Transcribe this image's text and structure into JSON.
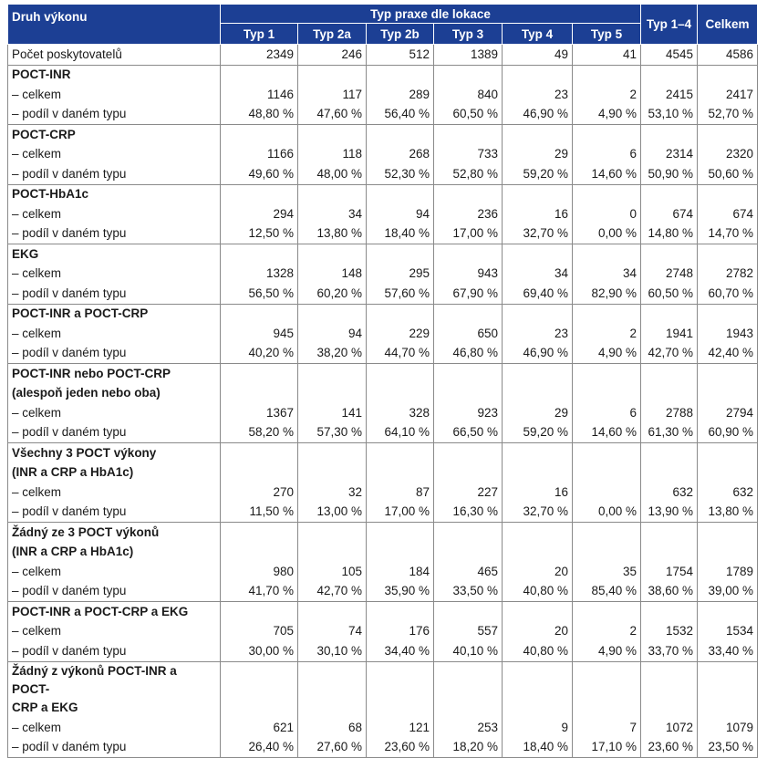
{
  "header": {
    "col0": "Druh výkonu",
    "group": "Typ praxe dle lokace",
    "types": [
      "Typ 1",
      "Typ 2a",
      "Typ 2b",
      "Typ 3",
      "Typ 4",
      "Typ 5"
    ],
    "type14": "Typ 1–4",
    "total": "Celkem"
  },
  "providers": {
    "label": "Počet poskytovatelů",
    "values": [
      "2349",
      "246",
      "512",
      "1389",
      "49",
      "41",
      "4545",
      "4586"
    ]
  },
  "sections": [
    {
      "title": [
        "POCT-INR"
      ],
      "total_label": "– celkem",
      "share_label": "– podíl v daném typu",
      "total": [
        "1146",
        "117",
        "289",
        "840",
        "23",
        "2",
        "2415",
        "2417"
      ],
      "share": [
        "48,80 %",
        "47,60 %",
        "56,40 %",
        "60,50 %",
        "46,90 %",
        "4,90 %",
        "53,10 %",
        "52,70 %"
      ]
    },
    {
      "title": [
        "POCT-CRP"
      ],
      "total_label": "– celkem",
      "share_label": "– podíl v daném typu",
      "total": [
        "1166",
        "118",
        "268",
        "733",
        "29",
        "6",
        "2314",
        "2320"
      ],
      "share": [
        "49,60 %",
        "48,00 %",
        "52,30 %",
        "52,80 %",
        "59,20 %",
        "14,60 %",
        "50,90 %",
        "50,60 %"
      ]
    },
    {
      "title": [
        "POCT-HbA1c"
      ],
      "total_label": "– celkem",
      "share_label": "– podíl v daném typu",
      "total": [
        "294",
        "34",
        "94",
        "236",
        "16",
        "0",
        "674",
        "674"
      ],
      "share": [
        "12,50 %",
        "13,80 %",
        "18,40 %",
        "17,00 %",
        "32,70 %",
        "0,00 %",
        "14,80 %",
        "14,70 %"
      ]
    },
    {
      "title": [
        "EKG"
      ],
      "total_label": "– celkem",
      "share_label": "– podíl v daném typu",
      "total": [
        "1328",
        "148",
        "295",
        "943",
        "34",
        "34",
        "2748",
        "2782"
      ],
      "share": [
        "56,50 %",
        "60,20 %",
        "57,60 %",
        "67,90 %",
        "69,40 %",
        "82,90 %",
        "60,50 %",
        "60,70 %"
      ]
    },
    {
      "title": [
        "POCT-INR a POCT-CRP"
      ],
      "total_label": "– celkem",
      "share_label": "– podíl v daném typu",
      "total": [
        "945",
        "94",
        "229",
        "650",
        "23",
        "2",
        "1941",
        "1943"
      ],
      "share": [
        "40,20 %",
        "38,20 %",
        "44,70 %",
        "46,80 %",
        "46,90 %",
        "4,90 %",
        "42,70 %",
        "42,40 %"
      ]
    },
    {
      "title": [
        "POCT-INR  nebo POCT-CRP",
        "(alespoň jeden nebo oba)"
      ],
      "total_label": "– celkem",
      "share_label": "– podíl v daném typu",
      "total": [
        "1367",
        "141",
        "328",
        "923",
        "29",
        "6",
        "2788",
        "2794"
      ],
      "share": [
        "58,20 %",
        "57,30 %",
        "64,10 %",
        "66,50 %",
        "59,20 %",
        "14,60 %",
        "61,30 %",
        "60,90 %"
      ]
    },
    {
      "title": [
        "Všechny 3 POCT výkony",
        "(INR a CRP a HbA1c)"
      ],
      "total_label": "– celkem",
      "share_label": "– podíl v daném typu",
      "total": [
        "270",
        "32",
        "87",
        "227",
        "16",
        "",
        "632",
        "632"
      ],
      "share": [
        "11,50 %",
        "13,00 %",
        "17,00 %",
        "16,30 %",
        "32,70 %",
        "0,00 %",
        "13,90 %",
        "13,80 %"
      ]
    },
    {
      "title": [
        "Žádný ze 3 POCT výkonů",
        "(INR a CRP a HbA1c)"
      ],
      "total_label": "– celkem",
      "share_label": "– podíl v daném typu",
      "total": [
        "980",
        "105",
        "184",
        "465",
        "20",
        "35",
        "1754",
        "1789"
      ],
      "share": [
        "41,70 %",
        "42,70 %",
        "35,90 %",
        "33,50 %",
        "40,80 %",
        "85,40 %",
        "38,60 %",
        "39,00 %"
      ]
    },
    {
      "title": [
        "POCT-INR a POCT-CRP a EKG"
      ],
      "total_label": "– celkem",
      "share_label": "– podíl v daném typu",
      "total": [
        "705",
        "74",
        "176",
        "557",
        "20",
        "2",
        "1532",
        "1534"
      ],
      "share": [
        "30,00 %",
        "30,10 %",
        "34,40 %",
        "40,10 %",
        "40,80 %",
        "4,90 %",
        "33,70 %",
        "33,40 %"
      ]
    },
    {
      "title": [
        "Žádný z výkonů POCT-INR a POCT-",
        "CRP a EKG"
      ],
      "total_label": "– celkem",
      "share_label": "– podíl v daném typu",
      "total": [
        "621",
        "68",
        "121",
        "253",
        "9",
        "7",
        "1072",
        "1079"
      ],
      "share": [
        "26,40 %",
        "27,60 %",
        "23,60 %",
        "18,20 %",
        "18,40 %",
        "17,10 %",
        "23,60 %",
        "23,50 %"
      ]
    }
  ]
}
